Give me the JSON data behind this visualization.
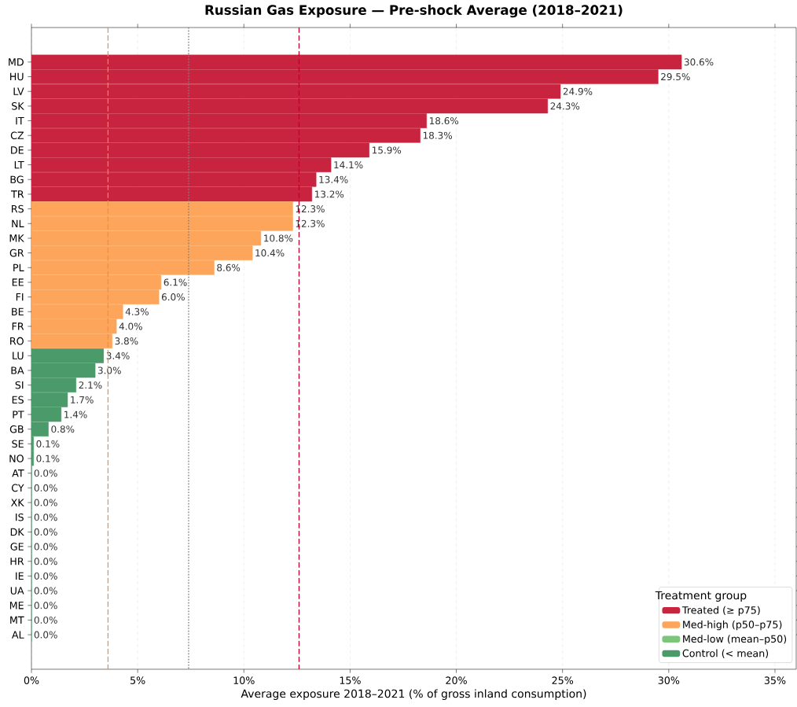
{
  "chart_data": {
    "type": "bar",
    "orientation": "horizontal",
    "title": "Russian Gas Exposure — Pre-shock Average (2018–2021)",
    "xlabel": "Average exposure 2018–2021 (% of gross inland consumption)",
    "legend_title": "Treatment group",
    "legend": "bottom right",
    "grid": "x",
    "categories": [
      "MD",
      "HU",
      "LV",
      "SK",
      "IT",
      "CZ",
      "DE",
      "LT",
      "BG",
      "TR",
      "RS",
      "NL",
      "MK",
      "GR",
      "PL",
      "EE",
      "FI",
      "BE",
      "FR",
      "RO",
      "LU",
      "BA",
      "SI",
      "ES",
      "PT",
      "GB",
      "SE",
      "NO",
      "AT",
      "CY",
      "XK",
      "IS",
      "DK",
      "GE",
      "HR",
      "IE",
      "UA",
      "ME",
      "MT",
      "AL"
    ],
    "series": [
      {
        "name": "Treated (≥ p75)",
        "color": "#c8243f",
        "values": [
          30.6,
          29.5,
          24.9,
          24.3,
          18.6,
          18.3,
          15.9,
          14.1,
          13.4,
          13.2,
          null,
          null,
          null,
          null,
          null,
          null,
          null,
          null,
          null,
          null,
          null,
          null,
          null,
          null,
          null,
          null,
          null,
          null,
          null,
          null,
          null,
          null,
          null,
          null,
          null,
          null,
          null,
          null,
          null,
          null
        ],
        "value_labels": [
          "30.6%",
          "29.5%",
          "24.9%",
          "24.3%",
          "18.6%",
          "18.3%",
          "15.9%",
          "14.1%",
          "13.4%",
          "13.2%",
          null,
          null,
          null,
          null,
          null,
          null,
          null,
          null,
          null,
          null,
          null,
          null,
          null,
          null,
          null,
          null,
          null,
          null,
          null,
          null,
          null,
          null,
          null,
          null,
          null,
          null,
          null,
          null,
          null,
          null
        ]
      },
      {
        "name": "Med-high (p50–p75)",
        "color": "#fda55a",
        "values": [
          null,
          null,
          null,
          null,
          null,
          null,
          null,
          null,
          null,
          null,
          12.3,
          12.3,
          10.8,
          10.4,
          8.6,
          6.1,
          6.0,
          4.3,
          4.0,
          3.8,
          null,
          null,
          null,
          null,
          null,
          null,
          null,
          null,
          null,
          null,
          null,
          null,
          null,
          null,
          null,
          null,
          null,
          null,
          null,
          null
        ],
        "value_labels": [
          null,
          null,
          null,
          null,
          null,
          null,
          null,
          null,
          null,
          null,
          "12.3%",
          "12.3%",
          "10.8%",
          "10.4%",
          "8.6%",
          "6.1%",
          "6.0%",
          "4.3%",
          "4.0%",
          "3.8%",
          null,
          null,
          null,
          null,
          null,
          null,
          null,
          null,
          null,
          null,
          null,
          null,
          null,
          null,
          null,
          null,
          null,
          null,
          null,
          null
        ]
      },
      {
        "name": "Med-low (mean–p50)",
        "color": "#7bc67b",
        "values": [
          null,
          null,
          null,
          null,
          null,
          null,
          null,
          null,
          null,
          null,
          null,
          null,
          null,
          null,
          null,
          null,
          null,
          null,
          null,
          null,
          null,
          null,
          null,
          null,
          null,
          null,
          null,
          null,
          null,
          null,
          null,
          null,
          null,
          null,
          null,
          null,
          null,
          null,
          null,
          null
        ]
      },
      {
        "name": "Control (< mean)",
        "color": "#4a9a6a",
        "values": [
          null,
          null,
          null,
          null,
          null,
          null,
          null,
          null,
          null,
          null,
          null,
          null,
          null,
          null,
          null,
          null,
          null,
          null,
          null,
          null,
          3.4,
          3.0,
          2.1,
          1.7,
          1.4,
          0.8,
          0.1,
          0.1,
          0.0,
          0.0,
          0.0,
          0.0,
          0.0,
          0.0,
          0.0,
          0.0,
          0.0,
          0.0,
          0.0,
          0.0
        ],
        "value_labels": [
          null,
          null,
          null,
          null,
          null,
          null,
          null,
          null,
          null,
          null,
          null,
          null,
          null,
          null,
          null,
          null,
          null,
          null,
          null,
          null,
          "3.4%",
          "3.0%",
          "2.1%",
          "1.7%",
          "1.4%",
          "0.8%",
          "0.1%",
          "0.1%",
          "0.0%",
          "0.0%",
          "0.0%",
          "0.0%",
          "0.0%",
          "0.0%",
          "0.0%",
          "0.0%",
          "0.0%",
          "0.0%",
          "0.0%",
          "0.0%"
        ]
      }
    ],
    "xlim": [
      0,
      36
    ],
    "xticks": [
      {
        "value": 0,
        "label": "0%"
      },
      {
        "value": 5,
        "label": "5%"
      },
      {
        "value": 10,
        "label": "10%"
      },
      {
        "value": 15,
        "label": "15%"
      },
      {
        "value": 20,
        "label": "20%"
      },
      {
        "value": 25,
        "label": "25%"
      },
      {
        "value": 30,
        "label": "30%"
      },
      {
        "value": 35,
        "label": "35%"
      }
    ],
    "ref_lines": [
      {
        "axis": "x",
        "value": 3.6,
        "color": "#f28e3c",
        "line_style": "dashed"
      },
      {
        "axis": "x",
        "value": 7.4,
        "color": "#808080",
        "line_style": "dotted"
      },
      {
        "axis": "x",
        "value": 12.6,
        "color": "#c0002a",
        "line_style": "dashed"
      }
    ]
  }
}
